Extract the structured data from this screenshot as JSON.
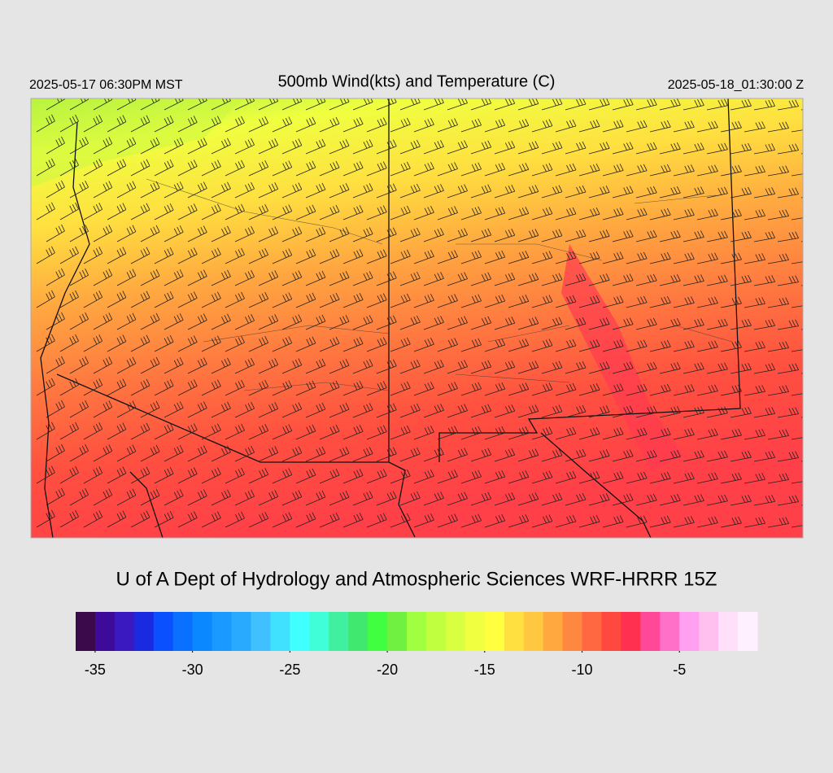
{
  "header": {
    "title": "500mb Wind(kts) and Temperature (C)",
    "valid_local": "2025-05-17 06:30PM MST",
    "valid_utc": "2025-05-18_01:30:00 Z"
  },
  "footer": {
    "credit": "U of A Dept of Hydrology and Atmospheric Sciences WRF-HRRR 15Z"
  },
  "colorbar": {
    "lim": [
      -36,
      -1
    ],
    "colors": [
      "#3a0a4a",
      "#3d0a9a",
      "#3a1ac0",
      "#1a2ae0",
      "#0a50ff",
      "#0a70ff",
      "#0a88ff",
      "#1a9aff",
      "#2aaaff",
      "#40c0ff",
      "#40e0ff",
      "#40ffff",
      "#40ffd8",
      "#40f0a0",
      "#40e870",
      "#40ff40",
      "#70f040",
      "#a0ff40",
      "#c0ff40",
      "#d8ff40",
      "#f0ff40",
      "#ffff40",
      "#ffe040",
      "#ffc840",
      "#ffa840",
      "#ff8840",
      "#ff6840",
      "#ff4840",
      "#ff3050",
      "#ff4898",
      "#ff70c8",
      "#ffa0f0",
      "#ffc0f0",
      "#ffe0f8",
      "#fff0ff"
    ],
    "ticks": [
      -35,
      -30,
      -25,
      -20,
      -15,
      -10,
      -5
    ]
  }
}
